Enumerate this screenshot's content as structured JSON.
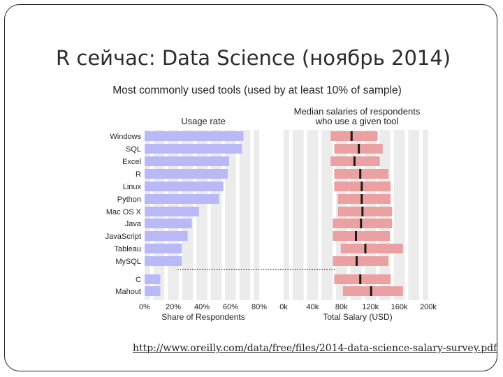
{
  "slide": {
    "title": "R сейчас: Data Science (ноябрь 2014)",
    "source_link": "http://www.oreilly.com/data/free/files/2014-data-science-salary-survey.pdf"
  },
  "chart_data": [
    {
      "type": "bar",
      "title": "Most commonly used tools (used by at least 10% of sample)",
      "subtitle": "Usage rate",
      "categories": [
        "Windows",
        "SQL",
        "Excel",
        "R",
        "Linux",
        "Python",
        "Mac OS X",
        "Java",
        "JavaScript",
        "Tableau",
        "MySQL",
        "C",
        "Mahout"
      ],
      "values": [
        0.69,
        0.68,
        0.59,
        0.58,
        0.55,
        0.52,
        0.38,
        0.33,
        0.3,
        0.26,
        0.26,
        0.11,
        0.11
      ],
      "xlabel": "Share of Respondents",
      "xlim": [
        0,
        0.8
      ],
      "xticks": [
        "0%",
        "20%",
        "40%",
        "60%",
        "80%"
      ],
      "bar_color": "#b9b9f8",
      "grid": true
    },
    {
      "type": "range",
      "title": "Median salaries of respondents who use a given tool",
      "title_lines": [
        "Median salaries of respondents",
        "who use a given tool"
      ],
      "categories": [
        "Windows",
        "SQL",
        "Excel",
        "R",
        "Linux",
        "Python",
        "Mac OS X",
        "Java",
        "JavaScript",
        "Tableau",
        "MySQL",
        "C",
        "Mahout"
      ],
      "ranges": [
        [
          65000,
          130000
        ],
        [
          70000,
          137000
        ],
        [
          65000,
          133000
        ],
        [
          70000,
          145000
        ],
        [
          70000,
          148000
        ],
        [
          75000,
          148000
        ],
        [
          75000,
          150000
        ],
        [
          68000,
          150000
        ],
        [
          68000,
          147000
        ],
        [
          79000,
          165000
        ],
        [
          68000,
          145000
        ],
        [
          70000,
          148000
        ],
        [
          82000,
          165000
        ]
      ],
      "medians": [
        94000,
        104000,
        98000,
        106000,
        108000,
        108000,
        109000,
        107000,
        100000,
        113000,
        101000,
        106000,
        121000
      ],
      "xlabel": "Total Salary (USD)",
      "xlim": [
        0,
        200000
      ],
      "xticks": [
        "0k",
        "40k",
        "80k",
        "120k",
        "160k",
        "200k"
      ],
      "range_color": "#eba1a1",
      "median_color": "#1a1a1a",
      "grid": true
    }
  ]
}
